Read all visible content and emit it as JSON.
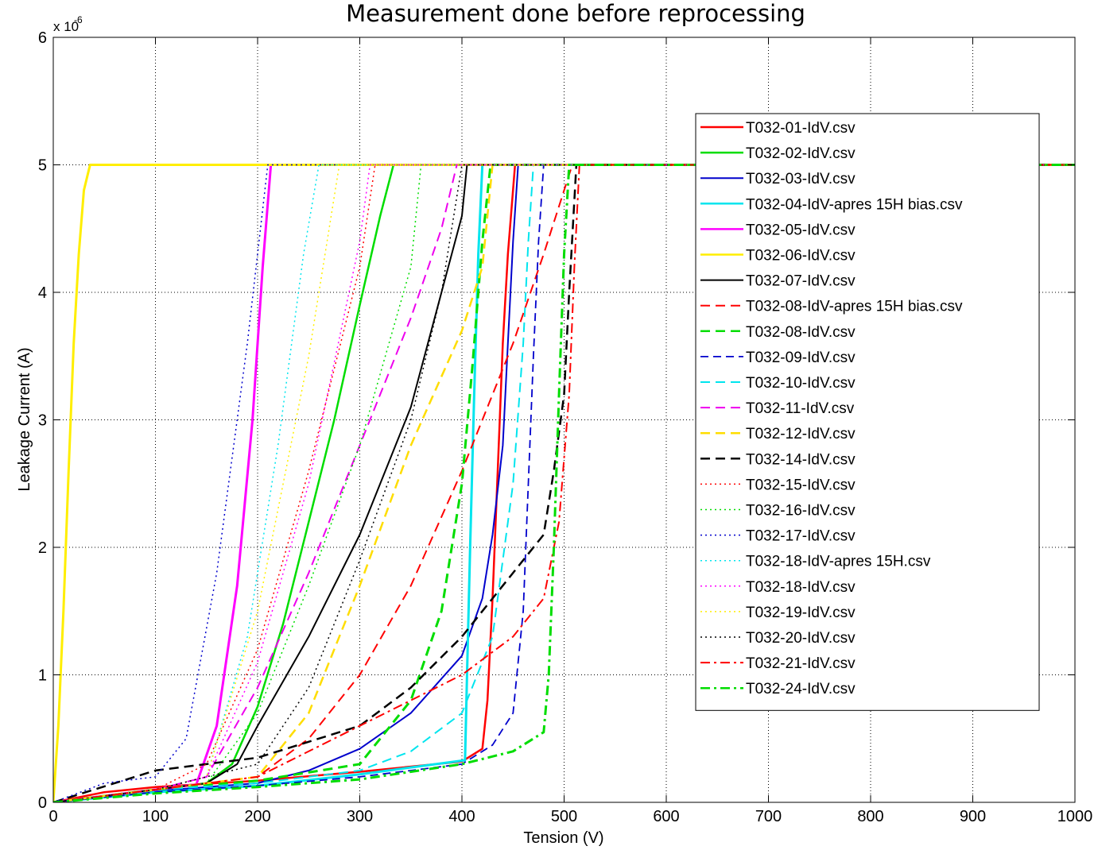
{
  "chart_data": {
    "type": "line",
    "title": "Measurement done before reprocessing",
    "xlabel": "Tension (V)",
    "ylabel": "Leakage Current (A)",
    "y_multiplier_label": "x 10",
    "y_multiplier_exponent": "-6",
    "xlim": [
      0,
      1000
    ],
    "ylim": [
      0,
      6
    ],
    "x_ticks": [
      "0",
      "100",
      "200",
      "300",
      "400",
      "500",
      "600",
      "700",
      "800",
      "900",
      "1000"
    ],
    "y_ticks": [
      "0",
      "1",
      "2",
      "3",
      "4",
      "5",
      "6"
    ],
    "grid": true,
    "legend_position": "upper-right",
    "series": [
      {
        "name": "T032-01-IdV.csv",
        "color": "#ff0000",
        "dash": "solid",
        "width": 2.5,
        "x": [
          0,
          50,
          100,
          200,
          300,
          400,
          420,
          425,
          430,
          435,
          440,
          445,
          452,
          1000
        ],
        "y": [
          0,
          0.08,
          0.12,
          0.17,
          0.24,
          0.32,
          0.42,
          0.8,
          1.6,
          2.6,
          3.6,
          4.3,
          5.0,
          5.0
        ]
      },
      {
        "name": "T032-02-IdV.csv",
        "color": "#00dd00",
        "dash": "solid",
        "width": 2.5,
        "x": [
          0,
          100,
          150,
          175,
          200,
          225,
          250,
          275,
          300,
          320,
          333,
          1000
        ],
        "y": [
          0,
          0.1,
          0.15,
          0.3,
          0.75,
          1.4,
          2.2,
          3.0,
          3.9,
          4.6,
          5.0,
          5.0
        ]
      },
      {
        "name": "T032-03-IdV.csv",
        "color": "#0000cc",
        "dash": "solid",
        "width": 2,
        "x": [
          0,
          100,
          200,
          250,
          300,
          350,
          400,
          420,
          430,
          440,
          445,
          450,
          455,
          1000
        ],
        "y": [
          0,
          0.09,
          0.15,
          0.25,
          0.42,
          0.7,
          1.15,
          1.6,
          2.1,
          2.8,
          3.6,
          4.4,
          5.0,
          5.0
        ]
      },
      {
        "name": "T032-04-IdV-apres 15H bias.csv",
        "color": "#00e5ee",
        "dash": "solid",
        "width": 3,
        "x": [
          0,
          100,
          200,
          300,
          403,
          405,
          408,
          412,
          416,
          420,
          1000
        ],
        "y": [
          0,
          0.08,
          0.13,
          0.22,
          0.33,
          1.0,
          2.0,
          3.2,
          4.3,
          5.0,
          5.0
        ]
      },
      {
        "name": "T032-05-IdV.csv",
        "color": "#ff00ff",
        "dash": "solid",
        "width": 3,
        "x": [
          0,
          100,
          140,
          160,
          180,
          195,
          205,
          213,
          1000
        ],
        "y": [
          0,
          0.1,
          0.14,
          0.6,
          1.7,
          3.0,
          4.2,
          5.0,
          5.0
        ]
      },
      {
        "name": "T032-06-IdV.csv",
        "color": "#ffee00",
        "dash": "solid",
        "width": 3,
        "x": [
          0,
          5,
          10,
          15,
          20,
          25,
          30,
          33,
          36,
          1000
        ],
        "y": [
          0,
          0.6,
          1.5,
          2.6,
          3.6,
          4.3,
          4.8,
          4.9,
          5.0,
          5.0
        ]
      },
      {
        "name": "T032-07-IdV.csv",
        "color": "#000000",
        "dash": "solid",
        "width": 2,
        "x": [
          0,
          100,
          150,
          180,
          200,
          250,
          300,
          350,
          380,
          400,
          405,
          1000
        ],
        "y": [
          0,
          0.1,
          0.15,
          0.3,
          0.6,
          1.3,
          2.1,
          3.1,
          4.0,
          4.6,
          5.0,
          5.0
        ]
      },
      {
        "name": "T032-08-IdV-apres 15H bias.csv",
        "color": "#ff0000",
        "dash": "12,7",
        "width": 2,
        "x": [
          0,
          100,
          200,
          250,
          300,
          350,
          400,
          450,
          480,
          500,
          508,
          1000
        ],
        "y": [
          0,
          0.1,
          0.2,
          0.5,
          1.0,
          1.7,
          2.6,
          3.6,
          4.3,
          4.8,
          5.0,
          5.0
        ]
      },
      {
        "name": "T032-08-IdV.csv",
        "color": "#00dd00",
        "dash": "12,7",
        "width": 3,
        "x": [
          0,
          100,
          200,
          300,
          350,
          380,
          400,
          410,
          420,
          428,
          1000
        ],
        "y": [
          0,
          0.1,
          0.17,
          0.3,
          0.8,
          1.5,
          2.5,
          3.4,
          4.4,
          5.0,
          5.0
        ]
      },
      {
        "name": "T032-09-IdV.csv",
        "color": "#0000cc",
        "dash": "10,6",
        "width": 1.8,
        "x": [
          0,
          100,
          200,
          300,
          400,
          430,
          450,
          460,
          465,
          470,
          475,
          480,
          1000
        ],
        "y": [
          0,
          0.08,
          0.13,
          0.2,
          0.3,
          0.45,
          0.7,
          1.5,
          2.5,
          3.5,
          4.4,
          5.0,
          5.0
        ]
      },
      {
        "name": "T032-10-IdV.csv",
        "color": "#00e5ee",
        "dash": "12,7",
        "width": 2,
        "x": [
          0,
          100,
          200,
          300,
          350,
          400,
          430,
          450,
          460,
          465,
          470,
          1000
        ],
        "y": [
          0,
          0.1,
          0.15,
          0.25,
          0.4,
          0.7,
          1.3,
          2.5,
          3.6,
          4.4,
          5.0,
          5.0
        ]
      },
      {
        "name": "T032-11-IdV.csv",
        "color": "#ee00ee",
        "dash": "12,7",
        "width": 2,
        "x": [
          0,
          100,
          150,
          200,
          250,
          300,
          350,
          380,
          395,
          1000
        ],
        "y": [
          0,
          0.1,
          0.2,
          0.9,
          1.8,
          2.8,
          3.8,
          4.5,
          5.0,
          5.0
        ]
      },
      {
        "name": "T032-12-IdV.csv",
        "color": "#ffdd00",
        "dash": "12,7",
        "width": 2.5,
        "x": [
          0,
          100,
          200,
          250,
          300,
          350,
          400,
          420,
          430,
          1000
        ],
        "y": [
          0,
          0.1,
          0.2,
          0.7,
          1.7,
          2.8,
          3.7,
          4.2,
          5.0,
          5.0
        ]
      },
      {
        "name": "T032-14-IdV.csv",
        "color": "#000000",
        "dash": "12,7",
        "width": 2.5,
        "x": [
          0,
          100,
          200,
          300,
          350,
          400,
          450,
          480,
          490,
          500,
          505,
          512,
          1000
        ],
        "y": [
          0,
          0.25,
          0.35,
          0.6,
          0.9,
          1.3,
          1.8,
          2.1,
          2.6,
          3.2,
          4.0,
          5.0,
          5.0
        ]
      },
      {
        "name": "T032-15-IdV.csv",
        "color": "#ff0000",
        "dash": "2,4",
        "width": 1.5,
        "x": [
          0,
          100,
          150,
          200,
          250,
          300,
          315,
          1000
        ],
        "y": [
          0,
          0.1,
          0.3,
          1.2,
          2.6,
          4.2,
          5.0,
          5.0
        ]
      },
      {
        "name": "T032-16-IdV.csv",
        "color": "#00dd00",
        "dash": "2,4",
        "width": 1.5,
        "x": [
          0,
          100,
          150,
          200,
          250,
          300,
          350,
          360,
          1000
        ],
        "y": [
          0,
          0.1,
          0.15,
          0.7,
          1.7,
          2.8,
          4.2,
          5.0,
          5.0
        ]
      },
      {
        "name": "T032-17-IdV.csv",
        "color": "#0000cc",
        "dash": "2,4",
        "width": 1.5,
        "x": [
          0,
          50,
          100,
          130,
          160,
          190,
          210,
          1000
        ],
        "y": [
          0,
          0.15,
          0.2,
          0.5,
          1.8,
          3.6,
          5.0,
          5.0
        ]
      },
      {
        "name": "T032-18-IdV-apres 15H.csv",
        "color": "#00e5ee",
        "dash": "2,4",
        "width": 1.5,
        "x": [
          0,
          100,
          150,
          190,
          220,
          245,
          260,
          1000
        ],
        "y": [
          0,
          0.1,
          0.2,
          1.3,
          2.8,
          4.3,
          5.0,
          5.0
        ]
      },
      {
        "name": "T032-18-IdV.csv",
        "color": "#ff00ff",
        "dash": "2,4",
        "width": 1.5,
        "x": [
          0,
          100,
          150,
          200,
          250,
          300,
          310,
          1000
        ],
        "y": [
          0,
          0.1,
          0.2,
          1.1,
          2.5,
          4.4,
          5.0,
          5.0
        ]
      },
      {
        "name": "T032-19-IdV.csv",
        "color": "#ffee00",
        "dash": "2,4",
        "width": 1.5,
        "x": [
          0,
          100,
          150,
          200,
          250,
          280,
          1000
        ],
        "y": [
          0,
          0.1,
          0.2,
          1.5,
          3.5,
          5.0,
          5.0
        ]
      },
      {
        "name": "T032-20-IdV.csv",
        "color": "#000000",
        "dash": "2,4",
        "width": 1.5,
        "x": [
          0,
          100,
          200,
          250,
          300,
          350,
          380,
          400,
          1000
        ],
        "y": [
          0,
          0.1,
          0.3,
          0.9,
          1.9,
          3.0,
          4.0,
          5.0,
          5.0
        ]
      },
      {
        "name": "T032-21-IdV.csv",
        "color": "#ff0000",
        "dash": "12,5,3,5",
        "width": 2,
        "x": [
          0,
          100,
          200,
          300,
          400,
          450,
          480,
          495,
          505,
          510,
          515,
          1000
        ],
        "y": [
          0,
          0.1,
          0.2,
          0.6,
          1.0,
          1.3,
          1.6,
          2.2,
          3.2,
          4.2,
          5.0,
          5.0
        ]
      },
      {
        "name": "T032-24-IdV.csv",
        "color": "#00dd00",
        "dash": "12,5,3,5",
        "width": 3,
        "x": [
          0,
          100,
          200,
          300,
          400,
          450,
          480,
          485,
          490,
          495,
          500,
          505,
          1000
        ],
        "y": [
          0,
          0.07,
          0.12,
          0.18,
          0.3,
          0.4,
          0.55,
          1.0,
          2.0,
          3.2,
          4.3,
          5.0,
          5.0
        ]
      }
    ]
  }
}
